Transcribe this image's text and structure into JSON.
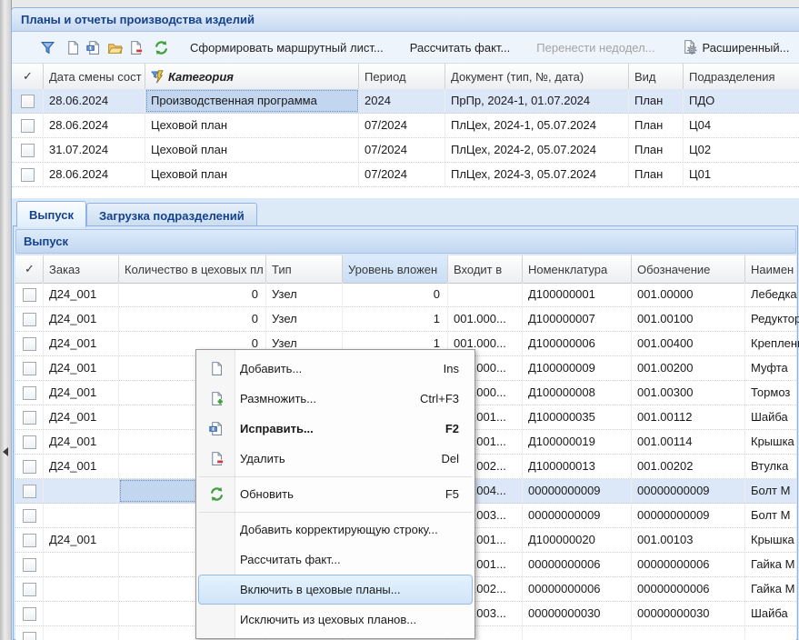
{
  "window": {
    "title": "Планы и отчеты производства изделий"
  },
  "colors": {
    "accent_blue": "#15428b",
    "panel_border": "#8db2e3",
    "row_selected": "#dce8f8",
    "focused_cell": "#c3d6ef",
    "menu_hover": "#d9eafc",
    "sorted_header": "#d6e5f6",
    "disabled_text": "#a3a3a3"
  },
  "toolbar": {
    "icon_buttons": [
      "filter-icon",
      "add-document-icon",
      "edit-document-icon",
      "open-folder-icon",
      "delete-document-icon",
      "refresh-icon"
    ],
    "text_buttons": [
      {
        "label": "Сформировать маршрутный лист...",
        "enabled": true,
        "icon": ""
      },
      {
        "label": "Рассчитать факт...",
        "enabled": true,
        "icon": ""
      },
      {
        "label": "Перенести недодел...",
        "enabled": false,
        "icon": ""
      },
      {
        "label": "Расширенный...",
        "enabled": true,
        "icon": "document-gear-icon"
      }
    ]
  },
  "plans_grid": {
    "columns": [
      "✓",
      "Дата смены сост",
      "Категория",
      "Период",
      "Документ (тип, №, дата)",
      "Вид",
      "Подразделения"
    ],
    "category_header_icon": "filter-lightning-icon",
    "rows": [
      {
        "date": "28.06.2024",
        "category": "Производственная программа",
        "period": "2024",
        "doc": "ПрПр, 2024-1, 01.07.2024",
        "kind": "План",
        "division": "ПДО",
        "selected": true
      },
      {
        "date": "28.06.2024",
        "category": "Цеховой план",
        "period": "07/2024",
        "doc": "ПлЦех, 2024-1, 05.07.2024",
        "kind": "План",
        "division": "Ц04",
        "selected": false
      },
      {
        "date": "31.07.2024",
        "category": "Цеховой план",
        "period": "07/2024",
        "doc": "ПлЦех, 2024-2, 05.07.2024",
        "kind": "План",
        "division": "Ц02",
        "selected": false
      },
      {
        "date": "28.06.2024",
        "category": "Цеховой план",
        "period": "07/2024",
        "doc": "ПлЦех, 2024-3, 05.07.2024",
        "kind": "План",
        "division": "Ц01",
        "selected": false
      }
    ]
  },
  "tabs": [
    {
      "label": "Выпуск",
      "active": true
    },
    {
      "label": "Загрузка подразделений",
      "active": false
    }
  ],
  "section_header": "Выпуск",
  "items_grid": {
    "columns": [
      "✓",
      "Заказ",
      "Количество в цеховых пл",
      "Тип",
      "Уровень вложен",
      "Входит в",
      "Номенклатура",
      "Обозначение",
      "Наимен"
    ],
    "sorted_column": "Уровень вложен",
    "rows": [
      {
        "order": "Д24_001",
        "qty": "0",
        "type": "Узел",
        "level": "0",
        "parent": "",
        "nomenclature": "Д100000001",
        "designation": "001.00000",
        "name": "Лебедка",
        "selected": false
      },
      {
        "order": "Д24_001",
        "qty": "0",
        "type": "Узел",
        "level": "1",
        "parent": "001.000...",
        "nomenclature": "Д100000007",
        "designation": "001.00100",
        "name": "Редуктор",
        "selected": false
      },
      {
        "order": "Д24_001",
        "qty": "0",
        "type": "Узел",
        "level": "1",
        "parent": "001.000...",
        "nomenclature": "Д100000006",
        "designation": "001.00400",
        "name": "Крепление",
        "selected": false
      },
      {
        "order": "Д24_001",
        "qty": "",
        "type": "",
        "level": "",
        "parent": "001.000...",
        "nomenclature": "Д100000009",
        "designation": "001.00200",
        "name": "Муфта",
        "selected": false
      },
      {
        "order": "Д24_001",
        "qty": "",
        "type": "",
        "level": "",
        "parent": "001.000...",
        "nomenclature": "Д100000008",
        "designation": "001.00300",
        "name": "Тормоз",
        "selected": false
      },
      {
        "order": "Д24_001",
        "qty": "",
        "type": "",
        "level": "",
        "parent": "001.001...",
        "nomenclature": "Д100000035",
        "designation": "001.00112",
        "name": "Шайба",
        "selected": false
      },
      {
        "order": "Д24_001",
        "qty": "",
        "type": "",
        "level": "",
        "parent": "001.001...",
        "nomenclature": "Д100000019",
        "designation": "001.00114",
        "name": "Крышка",
        "selected": false
      },
      {
        "order": "Д24_001",
        "qty": "",
        "type": "",
        "level": "",
        "parent": "001.002...",
        "nomenclature": "Д100000013",
        "designation": "001.00202",
        "name": "Втулка",
        "selected": false
      },
      {
        "order": "",
        "qty": "",
        "type": "",
        "level": "",
        "parent": "001.004...",
        "nomenclature": "00000000009",
        "designation": "00000000009",
        "name": "Болт М",
        "selected": true
      },
      {
        "order": "",
        "qty": "",
        "type": "",
        "level": "",
        "parent": "001.003...",
        "nomenclature": "00000000009",
        "designation": "00000000009",
        "name": "Болт М",
        "selected": false
      },
      {
        "order": "Д24_001",
        "qty": "",
        "type": "",
        "level": "",
        "parent": "001.001...",
        "nomenclature": "Д100000020",
        "designation": "001.00103",
        "name": "Крышка",
        "selected": false
      },
      {
        "order": "",
        "qty": "",
        "type": "",
        "level": "",
        "parent": "001.001...",
        "nomenclature": "00000000006",
        "designation": "00000000006",
        "name": "Гайка М",
        "selected": false
      },
      {
        "order": "",
        "qty": "",
        "type": "",
        "level": "",
        "parent": "001.002...",
        "nomenclature": "00000000006",
        "designation": "00000000006",
        "name": "Гайка М",
        "selected": false
      },
      {
        "order": "",
        "qty": "",
        "type": "",
        "level": "",
        "parent": "001.003...",
        "nomenclature": "00000000030",
        "designation": "00000000030",
        "name": "Шайба",
        "selected": false
      },
      {
        "order": "",
        "qty": "",
        "type": "",
        "level": "",
        "parent": "",
        "nomenclature": "",
        "designation": "",
        "name": "",
        "selected": false
      }
    ]
  },
  "context_menu": {
    "items": [
      {
        "label": "Добавить...",
        "shortcut": "Ins",
        "icon": "add-document-icon",
        "bold": false,
        "hover": false
      },
      {
        "label": "Размножить...",
        "shortcut": "Ctrl+F3",
        "icon": "copy-document-icon",
        "bold": false,
        "hover": false
      },
      {
        "label": "Исправить...",
        "shortcut": "F2",
        "icon": "edit-document-icon",
        "bold": true,
        "hover": false
      },
      {
        "label": "Удалить",
        "shortcut": "Del",
        "icon": "delete-document-icon",
        "bold": false,
        "hover": false
      },
      {
        "type": "separator"
      },
      {
        "label": "Обновить",
        "shortcut": "F5",
        "icon": "refresh-icon",
        "bold": false,
        "hover": false
      },
      {
        "type": "separator"
      },
      {
        "label": "Добавить корректирующую строку...",
        "shortcut": "",
        "icon": "",
        "bold": false,
        "hover": false
      },
      {
        "label": "Рассчитать факт...",
        "shortcut": "",
        "icon": "",
        "bold": false,
        "hover": false
      },
      {
        "label": "Включить в цеховые планы...",
        "shortcut": "",
        "icon": "",
        "bold": false,
        "hover": true
      },
      {
        "label": "Исключить из цеховых планов...",
        "shortcut": "",
        "icon": "",
        "bold": false,
        "hover": false
      }
    ]
  }
}
